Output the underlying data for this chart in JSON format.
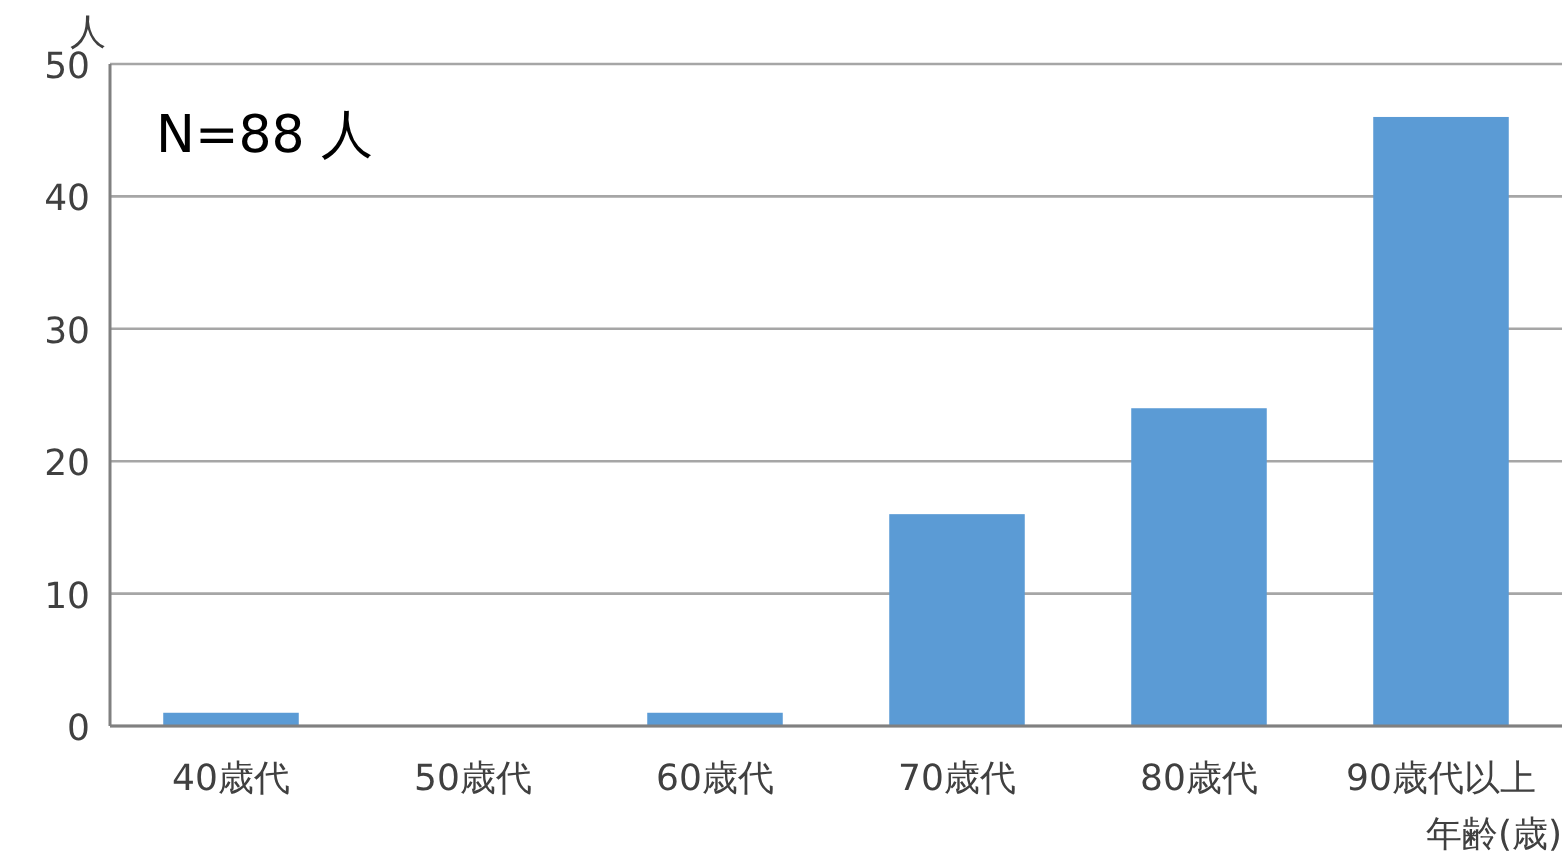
{
  "chart_data": {
    "type": "bar",
    "categories": [
      "40歳代",
      "50歳代",
      "60歳代",
      "70歳代",
      "80歳代",
      "90歳代以上"
    ],
    "values": [
      1,
      0,
      1,
      16,
      24,
      46
    ],
    "color": "#5b9bd5",
    "ylim": [
      0,
      50
    ],
    "yticks": [
      0,
      10,
      20,
      30,
      40,
      50
    ],
    "grid": "y",
    "ylabel": "人",
    "xlabel": "年齢(歳)",
    "annotations": [
      "N=88 人"
    ]
  }
}
